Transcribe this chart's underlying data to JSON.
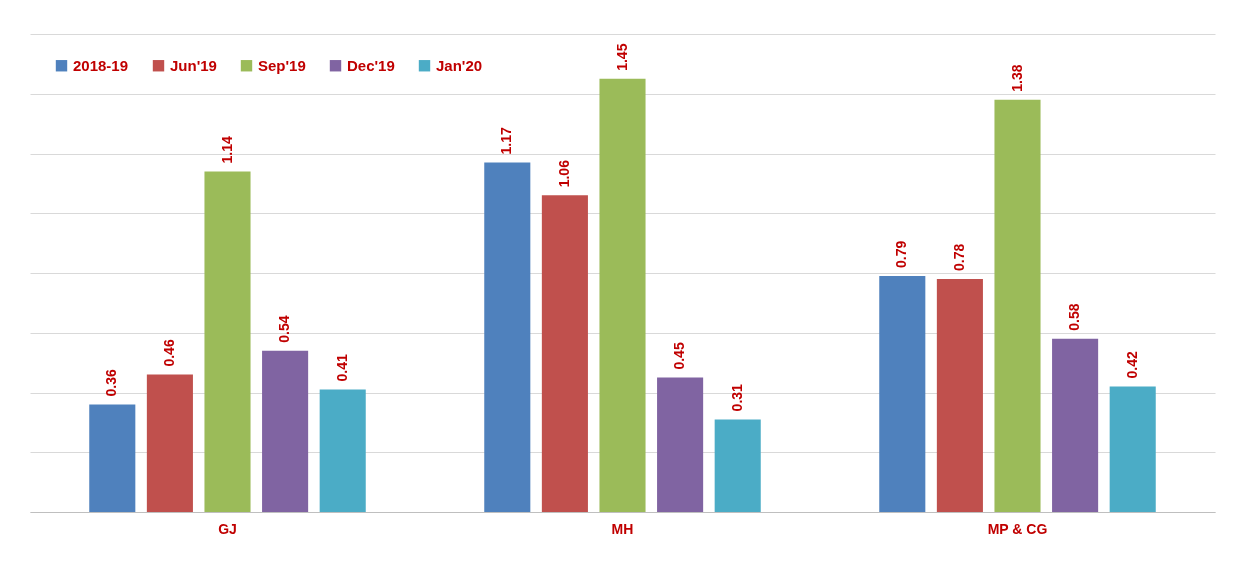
{
  "chart_data": {
    "type": "bar",
    "categories": [
      "GJ",
      "MH",
      "MP & CG"
    ],
    "series": [
      {
        "name": "2018-19",
        "color": "#4f81bd",
        "values": [
          0.36,
          1.17,
          0.79
        ]
      },
      {
        "name": "Jun'19",
        "color": "#c0504d",
        "values": [
          0.46,
          1.06,
          0.78
        ]
      },
      {
        "name": "Sep'19",
        "color": "#9bbb59",
        "values": [
          1.14,
          1.45,
          1.38
        ]
      },
      {
        "name": "Dec'19",
        "color": "#8064a2",
        "values": [
          0.54,
          0.45,
          0.58
        ]
      },
      {
        "name": "Jan'20",
        "color": "#4bacc6",
        "values": [
          0.41,
          0.31,
          0.42
        ]
      }
    ],
    "ylim": [
      0,
      1.6
    ],
    "yticks": [
      {
        "value": 0,
        "label": null
      },
      {
        "value": 0.2,
        "label": null
      },
      {
        "value": 0.4,
        "label": null
      },
      {
        "value": 0.6,
        "label": null
      },
      {
        "value": 0.8,
        "label": null
      },
      {
        "value": 1.0,
        "label": null
      },
      {
        "value": 1.2,
        "label": null
      },
      {
        "value": 1.4,
        "label": null
      },
      {
        "value": 1.6,
        "label": null
      }
    ],
    "grid": "y",
    "tick_labels": "x",
    "legend": "top left",
    "data_labels": true
  }
}
